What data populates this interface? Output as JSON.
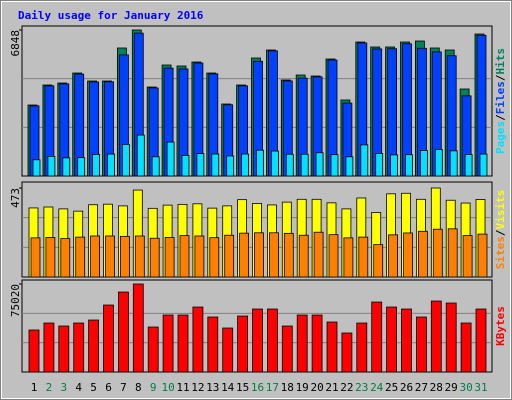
{
  "chart_data": [
    {
      "type": "bar",
      "title": "Daily usage for January 2016",
      "categories": [
        "1",
        "2",
        "3",
        "4",
        "5",
        "6",
        "7",
        "8",
        "9",
        "10",
        "11",
        "12",
        "13",
        "14",
        "15",
        "16",
        "17",
        "18",
        "19",
        "20",
        "21",
        "22",
        "23",
        "24",
        "25",
        "26",
        "27",
        "28",
        "29",
        "30",
        "31"
      ],
      "category_colors": [
        "#000000",
        "#008040",
        "#008040",
        "#000000",
        "#000000",
        "#000000",
        "#000000",
        "#000000",
        "#008040",
        "#008040",
        "#000000",
        "#000000",
        "#000000",
        "#000000",
        "#000000",
        "#008040",
        "#008040",
        "#000000",
        "#000000",
        "#000000",
        "#000000",
        "#000000",
        "#008040",
        "#008040",
        "#000000",
        "#000000",
        "#000000",
        "#000000",
        "#000000",
        "#008040",
        "#008040"
      ],
      "legend_separator": "/",
      "series": [
        {
          "name": "Hits",
          "color": "#00805c",
          "values": [
            3330,
            4268,
            4362,
            4831,
            4456,
            4456,
            6004,
            6848,
            4174,
            5206,
            5159,
            5347,
            4831,
            3377,
            4268,
            5535,
            5910,
            4503,
            4737,
            4690,
            5488,
            3565,
            6285,
            6051,
            6051,
            6285,
            6332,
            6004,
            5910,
            4081,
            6660
          ]
        },
        {
          "name": "Files",
          "color": "#0040ff",
          "values": [
            3290,
            4230,
            4320,
            4780,
            4410,
            4420,
            5680,
            6700,
            4130,
            5060,
            5020,
            5300,
            4790,
            3340,
            4230,
            5380,
            5870,
            4460,
            4590,
            4650,
            5440,
            3420,
            6240,
            5960,
            5970,
            6200,
            5990,
            5820,
            5640,
            3760,
            6600
          ]
        },
        {
          "name": "Pages",
          "color": "#00e0ff",
          "values": [
            760,
            920,
            850,
            860,
            1010,
            1030,
            1480,
            1920,
            900,
            1590,
            960,
            1050,
            1030,
            940,
            1030,
            1210,
            1170,
            1020,
            1020,
            1090,
            1000,
            900,
            1460,
            1060,
            990,
            1000,
            1200,
            1250,
            1180,
            1010,
            1030
          ]
        }
      ],
      "ylim": [
        0,
        6848
      ],
      "yticks": [
        6848
      ]
    },
    {
      "type": "bar",
      "legend_separator": "/",
      "series": [
        {
          "name": "Visits",
          "color": "#ffff00",
          "values": [
            367,
            372,
            362,
            350,
            384,
            387,
            378,
            462,
            365,
            382,
            386,
            389,
            366,
            378,
            411,
            391,
            383,
            398,
            413,
            413,
            394,
            362,
            420,
            343,
            442,
            445,
            413,
            473,
            408,
            393,
            412
          ]
        },
        {
          "name": "Sites",
          "color": "#ff8000",
          "values": [
            208,
            210,
            204,
            212,
            218,
            218,
            216,
            218,
            206,
            210,
            220,
            218,
            209,
            222,
            233,
            235,
            235,
            232,
            222,
            238,
            225,
            208,
            212,
            172,
            224,
            234,
            243,
            254,
            256,
            220,
            228
          ]
        }
      ],
      "ylim": [
        0,
        473
      ],
      "yticks": [
        473
      ]
    },
    {
      "type": "bar",
      "series": [
        {
          "name": "KBytes",
          "color": "#ff0000",
          "values": [
            35800,
            41750,
            39190,
            41750,
            44300,
            57080,
            68160,
            75020,
            38340,
            48560,
            48560,
            55380,
            46860,
            37490,
            47710,
            53680,
            53680,
            39190,
            48560,
            48560,
            42600,
            33230,
            41750,
            59640,
            55380,
            53680,
            46860,
            60490,
            58790,
            41750,
            53680
          ]
        }
      ],
      "ylim": [
        0,
        75020
      ],
      "yticks": [
        75020
      ]
    }
  ]
}
